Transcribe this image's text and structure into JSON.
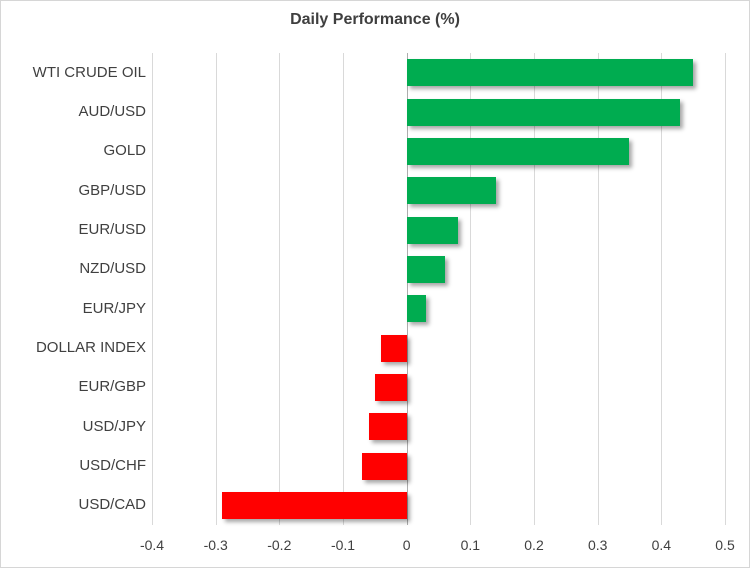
{
  "chart_data": {
    "type": "bar",
    "orientation": "horizontal",
    "title": "Daily Performance (%)",
    "categories": [
      "WTI CRUDE OIL",
      "AUD/USD",
      "GOLD",
      "GBP/USD",
      "EUR/USD",
      "NZD/USD",
      "EUR/JPY",
      "DOLLAR INDEX",
      "EUR/GBP",
      "USD/JPY",
      "USD/CHF",
      "USD/CAD"
    ],
    "values": [
      0.45,
      0.43,
      0.35,
      0.14,
      0.08,
      0.06,
      0.03,
      -0.04,
      -0.05,
      -0.06,
      -0.07,
      -0.29
    ],
    "xlabel": "",
    "ylabel": "",
    "xlim": [
      -0.4,
      0.5
    ],
    "xticks": [
      -0.4,
      -0.3,
      -0.2,
      -0.1,
      0,
      0.1,
      0.2,
      0.3,
      0.4,
      0.5
    ],
    "xtick_labels": [
      "-0.4",
      "-0.3",
      "-0.2",
      "-0.1",
      "0",
      "0.1",
      "0.2",
      "0.3",
      "0.4",
      "0.5"
    ],
    "grid": true,
    "legend": "none",
    "positive_color": "#00AC50",
    "negative_color": "#FF0000",
    "gridline_color": "#D9D9D9",
    "zero_line_color": "#ADADAD",
    "text_color": "#404040",
    "title_color": "#3F3F3F"
  }
}
